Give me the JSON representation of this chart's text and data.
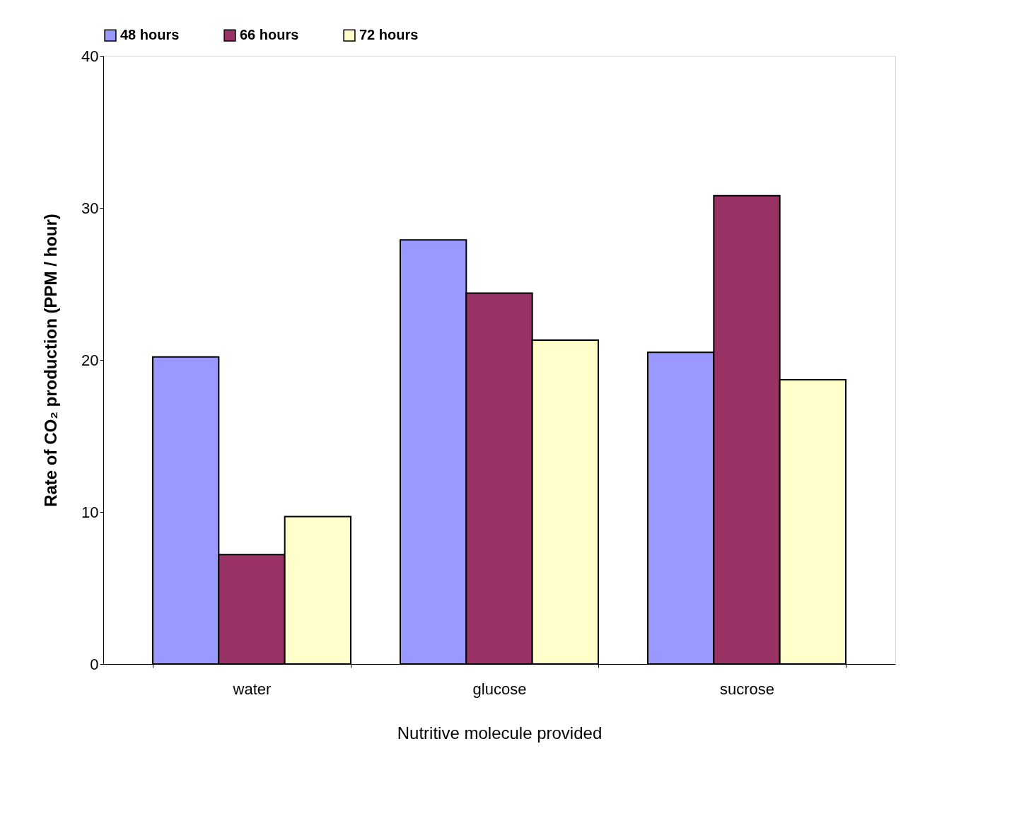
{
  "chart_data": {
    "type": "bar",
    "categories": [
      "water",
      "glucose",
      "sucrose"
    ],
    "series": [
      {
        "name": "48 hours",
        "color": "#9999ff",
        "values": [
          20.2,
          27.9,
          20.5
        ]
      },
      {
        "name": "66 hours",
        "color": "#993366",
        "values": [
          7.2,
          24.4,
          30.8
        ]
      },
      {
        "name": "72 hours",
        "color": "#ffffcc",
        "values": [
          9.7,
          21.3,
          18.7
        ]
      }
    ],
    "xlabel": "Nutritive molecule provided",
    "ylabel": "Rate of CO₂ production (PPM / hour)",
    "ylim": [
      0,
      40
    ],
    "yticks": [
      0,
      10,
      20,
      30,
      40
    ],
    "grid": false,
    "legend": "top"
  }
}
